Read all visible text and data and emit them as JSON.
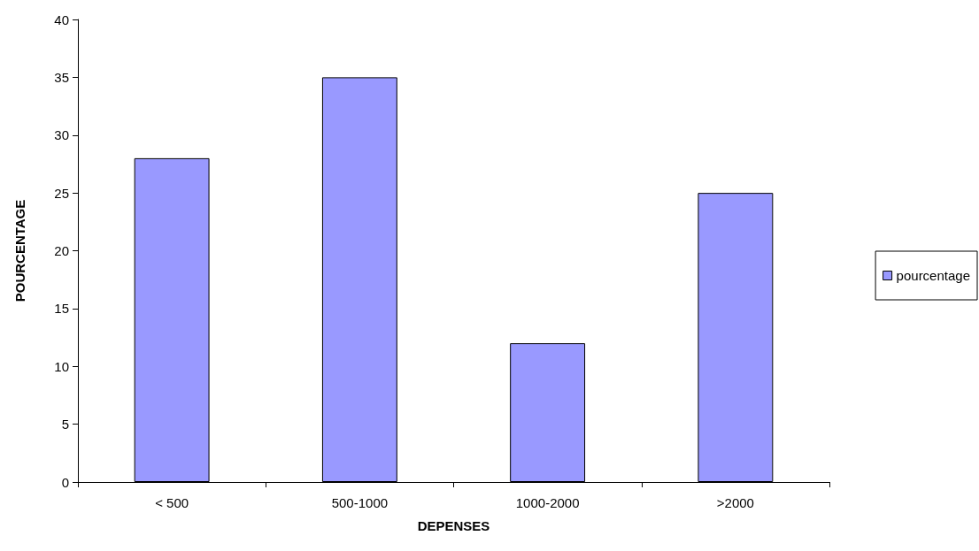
{
  "chart_data": {
    "type": "bar",
    "xlabel": "DEPENSES",
    "ylabel": "POURCENTAGE",
    "categories": [
      "< 500",
      "500-1000",
      "1000-2000",
      ">2000"
    ],
    "series": [
      {
        "name": "pourcentage",
        "color": "#9999ff",
        "values": [
          28,
          35,
          12,
          25
        ]
      }
    ],
    "ylim": [
      0,
      40
    ],
    "yticks": [
      0,
      5,
      10,
      15,
      20,
      25,
      30,
      35,
      40
    ],
    "grid": false,
    "legend": "right"
  }
}
